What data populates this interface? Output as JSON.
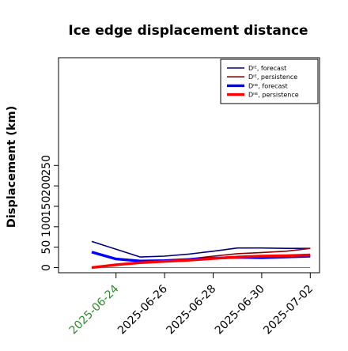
{
  "chart_data": {
    "type": "line",
    "title": "Ice edge displacement distance",
    "ylabel": "Displacement (km)",
    "xlabel": "",
    "ylim": [
      0,
      260
    ],
    "yticks": [
      0,
      50,
      100,
      150,
      200,
      250
    ],
    "x_dates": [
      "2025-06-23",
      "2025-06-24",
      "2025-06-25",
      "2025-06-26",
      "2025-06-27",
      "2025-06-28",
      "2025-06-29",
      "2025-06-30",
      "2025-07-01",
      "2025-07-02"
    ],
    "xtick_labels": [
      "2025-06-24",
      "2025-06-26",
      "2025-06-28",
      "2025-06-30",
      "2025-07-02"
    ],
    "highlight_tick": "2025-06-24",
    "highlight_color": "#2e8b2e",
    "reference_line": 0,
    "legend_position": "top-right",
    "grid": false,
    "series": [
      {
        "name": "Dᴵᴱ, forecast",
        "color": "#00007f",
        "width": 1.6,
        "values": [
          64,
          45,
          26,
          28,
          33,
          40,
          48,
          48,
          47,
          47
        ]
      },
      {
        "name": "Dᴵᴱ, persistence",
        "color": "#8b0000",
        "width": 1.6,
        "values": [
          1,
          6,
          12,
          16,
          21,
          28,
          34,
          37,
          40,
          47
        ]
      },
      {
        "name": "Dᴵᴵᴱ, forecast",
        "color": "#0000ff",
        "width": 3.4,
        "values": [
          38,
          21,
          16,
          17,
          20,
          23,
          25,
          24,
          26,
          28
        ]
      },
      {
        "name": "Dᴵᴵᴱ, persistence",
        "color": "#ff0000",
        "width": 3.4,
        "values": [
          0,
          7,
          12,
          15,
          18,
          22,
          26,
          28,
          29,
          31
        ]
      }
    ]
  }
}
